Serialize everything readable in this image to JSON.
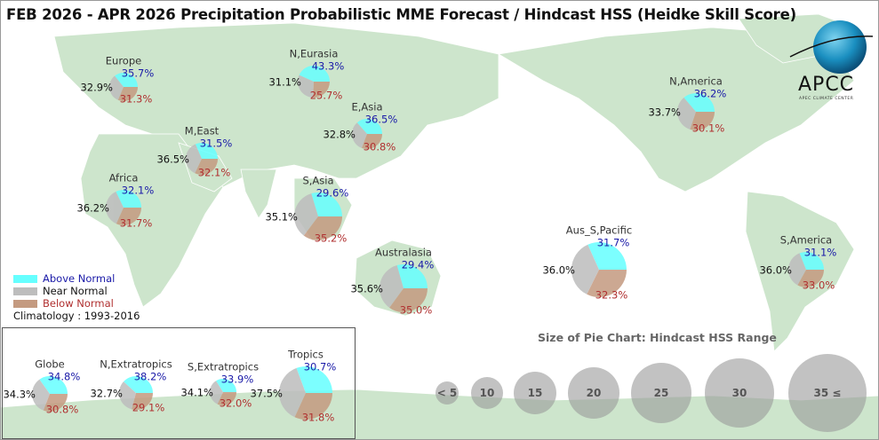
{
  "title": "FEB 2026 - APR 2026 Precipitation Probabilistic MME Forecast / Hindcast HSS (Heidke Skill Score)",
  "logo": {
    "text": "APCC",
    "subtitle": "APEC CLIMATE CENTER"
  },
  "legend": {
    "above": "Above Normal",
    "near": "Near Normal",
    "below": "Below Normal",
    "climatology": "Climatology : 1993-2016"
  },
  "colors": {
    "above": "#66ffff",
    "near": "#bdbdbd",
    "below": "#c49a80",
    "land": "#cde5cc",
    "above_text": "#1a1aa8",
    "below_text": "#b03030"
  },
  "size_legend": {
    "title": "Size of Pie Chart: Hindcast HSS Range",
    "items": [
      "< 5",
      "10",
      "15",
      "20",
      "25",
      "30",
      "35 ≤"
    ]
  },
  "chart_data": {
    "type": "pie",
    "title": "FEB 2026 - APR 2026 Precipitation Probabilistic MME Forecast / Hindcast HSS (Heidke Skill Score)",
    "categories": [
      "Above Normal",
      "Near Normal",
      "Below Normal"
    ],
    "regions": [
      {
        "name": "Europe",
        "above": "35.7%",
        "near": "32.9%",
        "below": "31.3%"
      },
      {
        "name": "N,Eurasia",
        "above": "43.3%",
        "near": "31.1%",
        "below": "25.7%"
      },
      {
        "name": "E,Asia",
        "above": "36.5%",
        "near": "32.8%",
        "below": "30.8%"
      },
      {
        "name": "M,East",
        "above": "31.5%",
        "near": "36.5%",
        "below": "32.1%"
      },
      {
        "name": "Africa",
        "above": "32.1%",
        "near": "36.2%",
        "below": "31.7%"
      },
      {
        "name": "S,Asia",
        "above": "29.6%",
        "near": "35.1%",
        "below": "35.2%"
      },
      {
        "name": "Australasia",
        "above": "29.4%",
        "near": "35.6%",
        "below": "35.0%"
      },
      {
        "name": "N,America",
        "above": "36.2%",
        "near": "33.7%",
        "below": "30.1%"
      },
      {
        "name": "Aus_S,Pacific",
        "above": "31.7%",
        "near": "36.0%",
        "below": "32.3%"
      },
      {
        "name": "S,America",
        "above": "31.1%",
        "near": "36.0%",
        "below": "33.0%"
      },
      {
        "name": "Globe",
        "above": "34.8%",
        "near": "34.3%",
        "below": "30.8%"
      },
      {
        "name": "N,Extratropics",
        "above": "38.2%",
        "near": "32.7%",
        "below": "29.1%"
      },
      {
        "name": "S,Extratropics",
        "above": "33.9%",
        "near": "34.1%",
        "below": "32.0%"
      },
      {
        "name": "Tropics",
        "above": "30.7%",
        "near": "37.5%",
        "below": "31.8%"
      }
    ]
  }
}
